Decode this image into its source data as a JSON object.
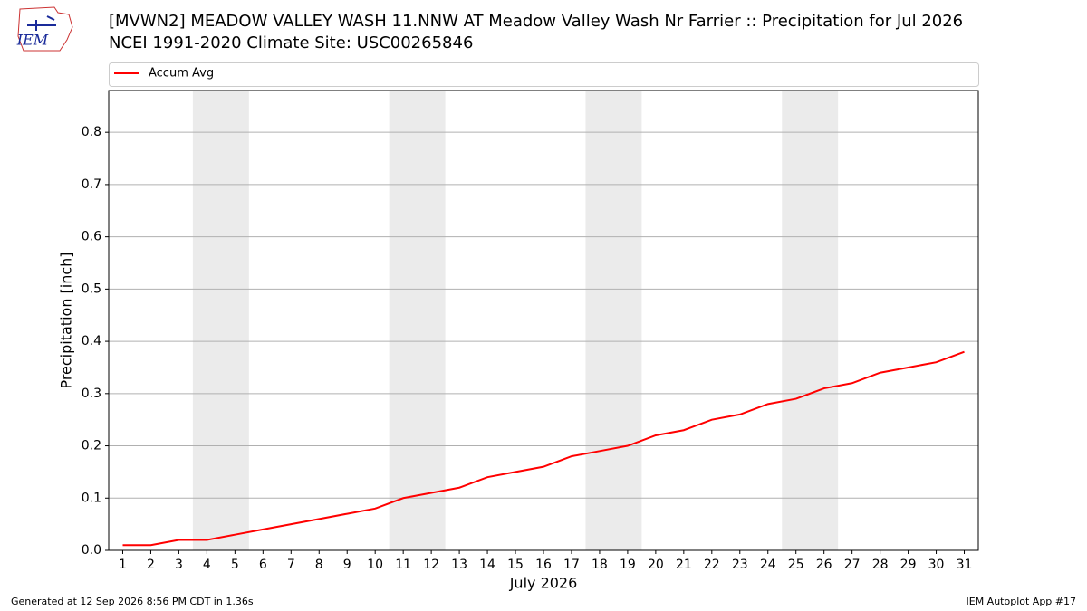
{
  "logo_text": "IEM",
  "chart_data": {
    "type": "line",
    "title": "[MVWN2] MEADOW VALLEY WASH 11.NNW AT Meadow Valley Wash Nr Farrier :: Precipitation for Jul 2026",
    "subtitle": "NCEI 1991-2020 Climate Site: USC00265846",
    "xlabel": "July 2026",
    "ylabel": "Precipitation [inch]",
    "x": [
      1,
      2,
      3,
      4,
      5,
      6,
      7,
      8,
      9,
      10,
      11,
      12,
      13,
      14,
      15,
      16,
      17,
      18,
      19,
      20,
      21,
      22,
      23,
      24,
      25,
      26,
      27,
      28,
      29,
      30,
      31
    ],
    "series": [
      {
        "name": "Accum Avg",
        "color": "#ff0000",
        "values": [
          0.01,
          0.01,
          0.02,
          0.02,
          0.03,
          0.04,
          0.05,
          0.06,
          0.07,
          0.08,
          0.1,
          0.11,
          0.12,
          0.14,
          0.15,
          0.16,
          0.18,
          0.19,
          0.2,
          0.22,
          0.23,
          0.25,
          0.26,
          0.28,
          0.29,
          0.31,
          0.32,
          0.34,
          0.35,
          0.36,
          0.38
        ]
      }
    ],
    "shaded_ranges": [
      [
        3.5,
        5.5
      ],
      [
        10.5,
        12.5
      ],
      [
        17.5,
        19.5
      ],
      [
        24.5,
        26.5
      ]
    ],
    "xlim": [
      0.5,
      31.5
    ],
    "ylim": [
      0,
      0.88
    ],
    "xticks": [
      1,
      2,
      3,
      4,
      5,
      6,
      7,
      8,
      9,
      10,
      11,
      12,
      13,
      14,
      15,
      16,
      17,
      18,
      19,
      20,
      21,
      22,
      23,
      24,
      25,
      26,
      27,
      28,
      29,
      30,
      31
    ],
    "yticks": [
      {
        "value": 0,
        "label": "0.0"
      },
      0.1,
      0.2,
      0.3,
      0.4,
      0.5,
      0.6,
      0.7,
      0.8
    ],
    "grid": true,
    "legend": "top",
    "footer_left": "Generated at 12 Sep 2026 8:56 PM CDT in 1.36s",
    "footer_right": "IEM Autoplot App #17"
  }
}
